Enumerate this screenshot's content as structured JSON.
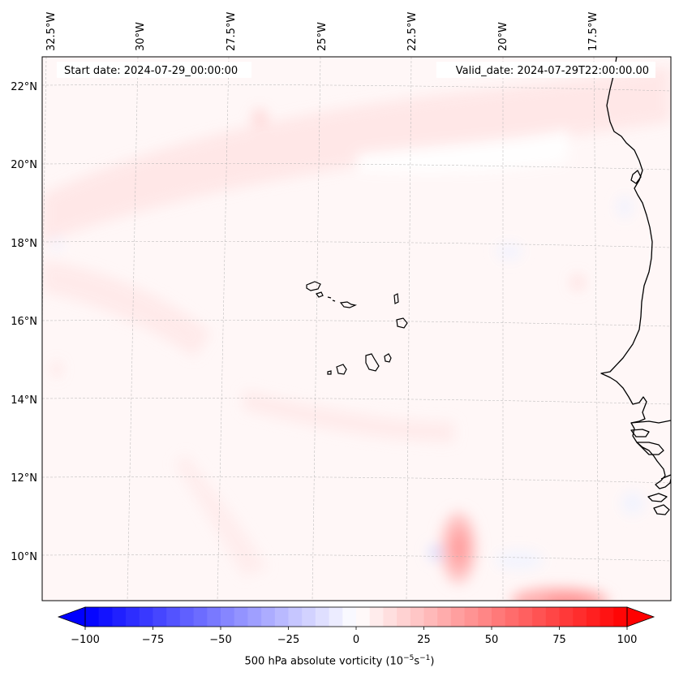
{
  "header": {
    "start_date": "Start date: 2024-07-29_00:00:00",
    "valid_date": "Valid_date: 2024-07-29T22:00:00.00"
  },
  "map": {
    "longitude_labels": [
      "32.5°W",
      "30°W",
      "27.5°W",
      "25°W",
      "22.5°W",
      "20°W",
      "17.5°W"
    ],
    "latitude_labels": [
      "22°N",
      "20°N",
      "18°N",
      "16°N",
      "14°N",
      "12°N",
      "10°N"
    ]
  },
  "colorbar": {
    "ticks": [
      "−100",
      "−75",
      "−50",
      "−25",
      "0",
      "25",
      "50",
      "75",
      "100"
    ],
    "label_main": "500 hPa absolute vorticity (10",
    "label_exp1": "−5",
    "label_mid": "s",
    "label_exp2": "−1",
    "label_end": ")",
    "negative_color": "#0000ff",
    "positive_color": "#ff0000"
  }
}
